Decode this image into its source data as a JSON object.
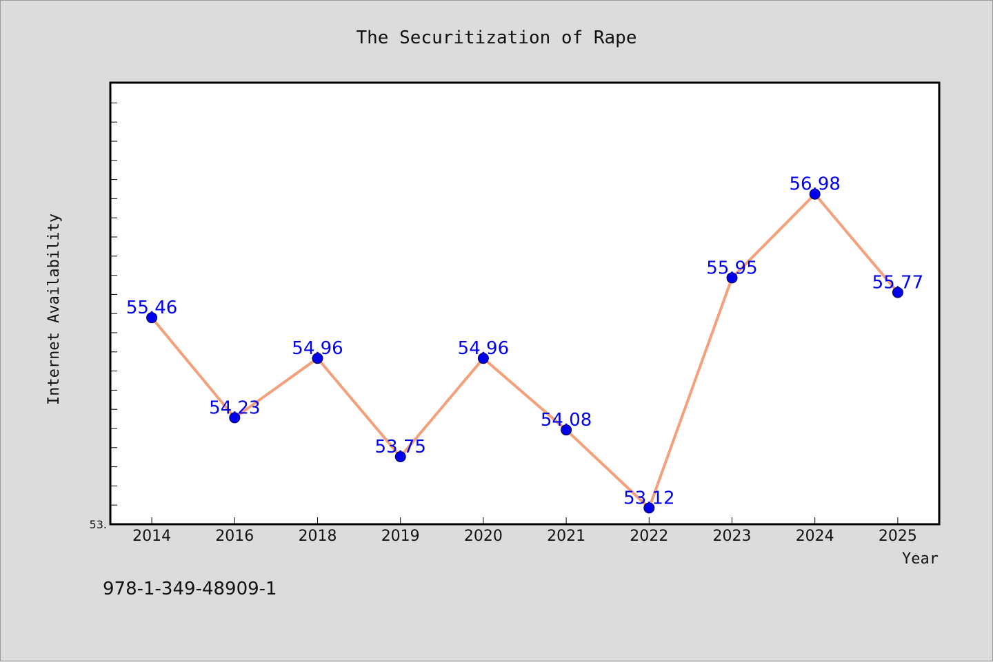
{
  "chart_data": {
    "type": "line",
    "title": "The Securitization of Rape",
    "xlabel": "Year",
    "ylabel": "Internet Availability",
    "categories": [
      "2014",
      "2016",
      "2018",
      "2019",
      "2020",
      "2021",
      "2022",
      "2023",
      "2024",
      "2025"
    ],
    "series": [
      {
        "values": [
          55.46,
          54.23,
          54.96,
          53.75,
          54.96,
          54.08,
          53.12,
          55.95,
          56.98,
          55.77
        ]
      }
    ],
    "data_labels": [
      "55.46",
      "54.23",
      "54.96",
      "53.75",
      "54.96",
      "54.08",
      "53.12",
      "55.95",
      "56.98",
      "55.77"
    ],
    "ylim": [
      52.92,
      58.35
    ],
    "y_tick_labels": [
      "53."
    ],
    "grid": false,
    "legend": "none",
    "line_color": "#f4a07a",
    "marker_color": "#0000ee",
    "label_color": "#0000ee"
  },
  "footer_text": "978-1-349-48909-1"
}
